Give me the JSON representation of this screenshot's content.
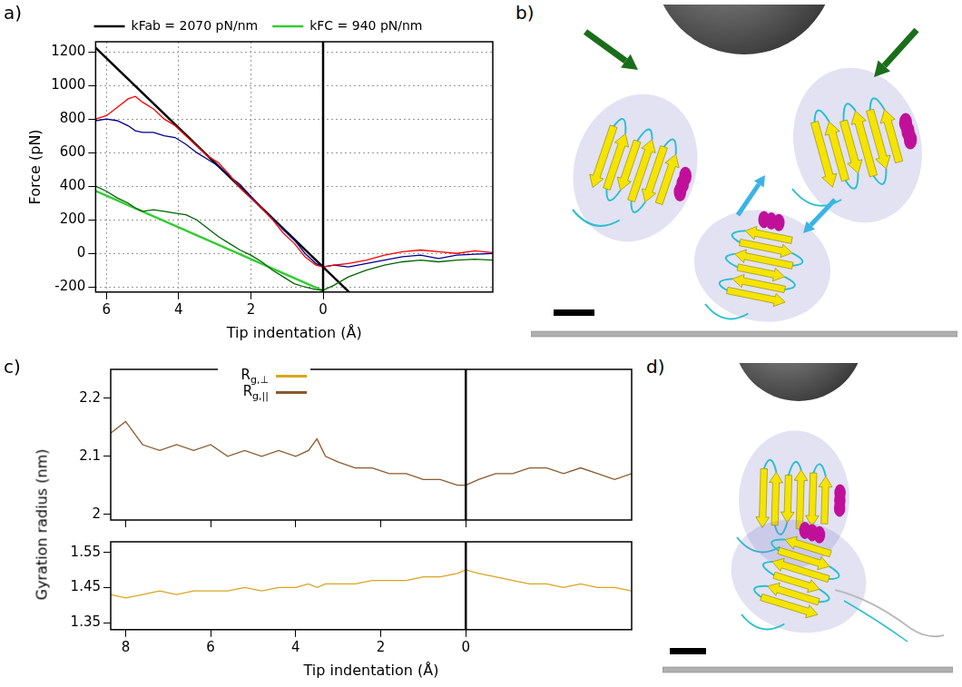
{
  "chart_data": [
    {
      "panel_letter": "a)",
      "type": "line",
      "xlabel": "Tip indentation (Å)",
      "ylabel": "Force (pN)",
      "xlim": [
        6.3,
        -4.7
      ],
      "xticks": [
        6,
        4,
        2,
        0
      ],
      "ylim": [
        -230,
        1260
      ],
      "yticks": [
        -200,
        0,
        200,
        400,
        600,
        800,
        1000,
        1200
      ],
      "grid": true,
      "legend": "top",
      "vline_x": 0,
      "series": [
        {
          "color": "#ff0000",
          "x": [
            6.3,
            6.0,
            5.7,
            5.4,
            5.2,
            5.0,
            4.7,
            4.4,
            4.1,
            3.8,
            3.5,
            3.2,
            2.9,
            2.6,
            2.3,
            2.0,
            1.7,
            1.4,
            1.1,
            0.8,
            0.5,
            0.2,
            0,
            -0.3,
            -0.7,
            -1.2,
            -1.7,
            -2.2,
            -2.7,
            -3.2,
            -3.7,
            -4.2,
            -4.7
          ],
          "values": [
            800,
            820,
            870,
            920,
            935,
            900,
            860,
            800,
            760,
            700,
            640,
            580,
            540,
            470,
            390,
            330,
            270,
            200,
            120,
            60,
            -20,
            -70,
            -80,
            -70,
            -60,
            -40,
            -10,
            10,
            20,
            10,
            0,
            15,
            5
          ]
        },
        {
          "color": "#00008b",
          "x": [
            6.3,
            6.0,
            5.7,
            5.4,
            5.2,
            5.0,
            4.7,
            4.4,
            4.1,
            3.8,
            3.5,
            3.2,
            2.9,
            2.6,
            2.3,
            2.0,
            1.7,
            1.4,
            1.1,
            0.8,
            0.5,
            0.2,
            0,
            -0.3,
            -0.7,
            -1.2,
            -1.7,
            -2.2,
            -2.7,
            -3.2,
            -3.7,
            -4.2,
            -4.7
          ],
          "values": [
            790,
            800,
            790,
            760,
            730,
            720,
            720,
            700,
            690,
            650,
            600,
            560,
            520,
            460,
            410,
            340,
            270,
            210,
            140,
            80,
            0,
            -60,
            -80,
            -70,
            -80,
            -60,
            -40,
            -20,
            -10,
            -30,
            -10,
            -5,
            0
          ]
        },
        {
          "color": "#006400",
          "x": [
            6.3,
            6.0,
            5.7,
            5.4,
            5.2,
            5.0,
            4.7,
            4.4,
            4.1,
            3.8,
            3.5,
            3.2,
            2.9,
            2.6,
            2.3,
            2.0,
            1.7,
            1.4,
            1.1,
            0.8,
            0.5,
            0.2,
            0,
            -0.3,
            -0.7,
            -1.2,
            -1.7,
            -2.2,
            -2.7,
            -3.2,
            -3.7,
            -4.2,
            -4.7
          ],
          "values": [
            400,
            370,
            330,
            300,
            270,
            250,
            260,
            250,
            240,
            230,
            200,
            150,
            100,
            60,
            20,
            -10,
            -50,
            -100,
            -140,
            -180,
            -200,
            -215,
            -220,
            -190,
            -140,
            -100,
            -70,
            -50,
            -40,
            -50,
            -40,
            -35,
            -40
          ]
        },
        {
          "name": "kFab = 2070 pN/nm",
          "color": "#000000",
          "x": [
            6.3,
            -0.72
          ],
          "values": [
            1224,
            -230
          ]
        },
        {
          "name": "kFC = 940 pN/nm",
          "color": "#33cc33",
          "x": [
            6.3,
            0
          ],
          "values": [
            372,
            -222
          ]
        }
      ]
    },
    {
      "panel_letter": "c)",
      "type": "line",
      "ylabel": "Gyration radius (nm)",
      "xlim": [
        8.35,
        -3.9
      ],
      "xticks": [
        8,
        6,
        4,
        2,
        0
      ],
      "ylim": [
        1.99,
        2.25
      ],
      "yticks": [
        2,
        2.1,
        2.2
      ],
      "grid": false,
      "tick_labels": "y",
      "legend": "upper left",
      "vline_x": 0,
      "series": [
        {
          "name": "Rg,||",
          "color": "#8b5a2b",
          "x": [
            8.35,
            8,
            7.6,
            7.2,
            6.8,
            6.4,
            6,
            5.6,
            5.2,
            4.8,
            4.4,
            4,
            3.7,
            3.5,
            3.3,
            3,
            2.6,
            2.2,
            1.8,
            1.4,
            1,
            0.6,
            0.2,
            0,
            -0.3,
            -0.7,
            -1.1,
            -1.5,
            -1.9,
            -2.3,
            -2.7,
            -3.1,
            -3.5,
            -3.9
          ],
          "values": [
            2.14,
            2.16,
            2.12,
            2.11,
            2.12,
            2.11,
            2.12,
            2.1,
            2.11,
            2.1,
            2.11,
            2.1,
            2.11,
            2.13,
            2.1,
            2.09,
            2.08,
            2.08,
            2.07,
            2.07,
            2.06,
            2.06,
            2.05,
            2.05,
            2.06,
            2.07,
            2.07,
            2.08,
            2.08,
            2.07,
            2.08,
            2.07,
            2.06,
            2.07
          ]
        }
      ]
    },
    {
      "type": "line",
      "xlabel": "Tip indentation (Å)",
      "xlim": [
        8.35,
        -3.9
      ],
      "xticks": [
        8,
        6,
        4,
        2,
        0
      ],
      "ylim": [
        1.33,
        1.58
      ],
      "yticks": [
        1.35,
        1.45,
        1.55
      ],
      "grid": false,
      "legend": "upper left",
      "vline_x": 0,
      "series": [
        {
          "name": "Rg,⊥",
          "color": "#daa520",
          "x": [
            8.35,
            8,
            7.6,
            7.2,
            6.8,
            6.4,
            6,
            5.6,
            5.2,
            4.8,
            4.4,
            4,
            3.7,
            3.5,
            3.3,
            3,
            2.6,
            2.2,
            1.8,
            1.4,
            1,
            0.6,
            0.2,
            0,
            -0.3,
            -0.7,
            -1.1,
            -1.5,
            -1.9,
            -2.3,
            -2.7,
            -3.1,
            -3.5,
            -3.9
          ],
          "values": [
            1.43,
            1.42,
            1.43,
            1.44,
            1.43,
            1.44,
            1.44,
            1.44,
            1.45,
            1.44,
            1.45,
            1.45,
            1.46,
            1.45,
            1.46,
            1.46,
            1.46,
            1.47,
            1.47,
            1.47,
            1.48,
            1.48,
            1.49,
            1.5,
            1.49,
            1.48,
            1.47,
            1.46,
            1.46,
            1.45,
            1.46,
            1.45,
            1.45,
            1.44
          ]
        }
      ]
    }
  ],
  "image_panels": [
    "b)",
    "d)"
  ]
}
